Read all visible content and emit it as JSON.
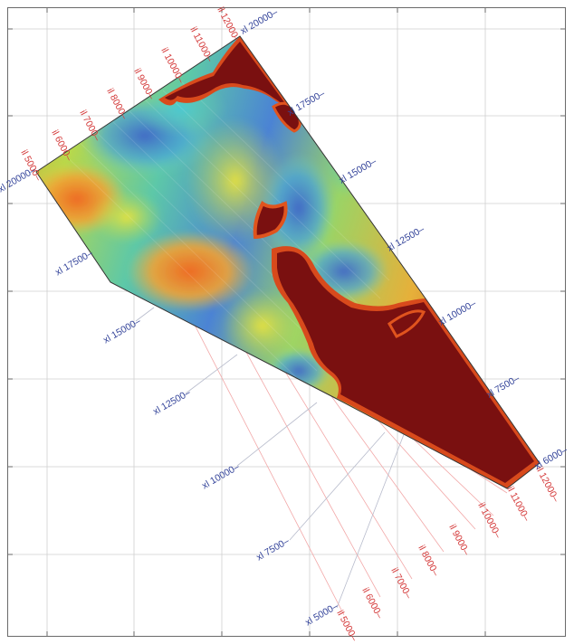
{
  "map": {
    "inline_labels": [
      "il 12000",
      "il 11000",
      "il 10000",
      "il 9000",
      "il 8000",
      "il 7000",
      "il 6000",
      "il 5000",
      "il 5000",
      "il 6000",
      "il 7000",
      "il 8000",
      "il 9000",
      "il 10000",
      "il 11000",
      "il 12000"
    ],
    "xline_labels": [
      "xl 20000",
      "xl 17500",
      "xl 15000",
      "xl 12500",
      "xl 10000",
      "xl 7500",
      "xl 6000",
      "xl 20000",
      "xl 17500",
      "xl 15000",
      "xl 12500",
      "xl 10000",
      "xl 7500",
      "xl 5000",
      "xl 6000"
    ],
    "colors": {
      "inline": "#d43a3a",
      "xline": "#34449a",
      "high_value": "#7a1010",
      "low_value": "#3a62c8",
      "mid_value": "#d8e03c"
    },
    "color_scale": "jet (blue-cyan-green-yellow-orange-dark red)"
  }
}
